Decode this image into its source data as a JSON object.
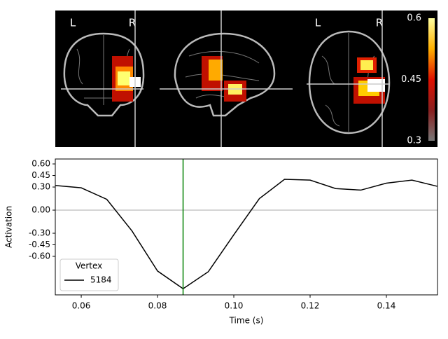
{
  "brain_view": {
    "labels": [
      "L",
      "R",
      "L",
      "R"
    ],
    "colorbar": {
      "lim": [
        0.3,
        0.6
      ],
      "ticks": [
        0.6,
        0.45,
        0.3
      ]
    }
  },
  "chart_data": {
    "type": "line",
    "x_label": "Time (s)",
    "y_label": "Activation",
    "x": [
      0.0533,
      0.06,
      0.0667,
      0.0733,
      0.08,
      0.0867,
      0.0933,
      0.1,
      0.1067,
      0.1133,
      0.12,
      0.1267,
      0.1333,
      0.14,
      0.1467,
      0.1533
    ],
    "series": [
      {
        "name": "5184",
        "color": "#000000",
        "values": [
          0.32,
          0.29,
          0.14,
          -0.27,
          -0.79,
          -1.02,
          -0.8,
          -0.32,
          0.15,
          0.4,
          0.39,
          0.28,
          0.26,
          0.35,
          0.39,
          0.31
        ]
      }
    ],
    "legend_title": "Vertex",
    "legend": "lower left",
    "time_marker": {
      "x": 0.0867,
      "color": "#008000"
    },
    "zero_line": {
      "y": 0,
      "color": "#aaaaaa"
    },
    "xlim": [
      0.0532,
      0.1534
    ],
    "ylim": [
      -1.1,
      0.664
    ],
    "xticks": [
      {
        "value": 0.06,
        "label": "0.06"
      },
      {
        "value": 0.08,
        "label": "0.08"
      },
      {
        "value": 0.1,
        "label": "0.10"
      },
      {
        "value": 0.12,
        "label": "0.12"
      },
      {
        "value": 0.14,
        "label": "0.14"
      }
    ],
    "yticks": [
      {
        "value": 0.6,
        "label": "0.60"
      },
      {
        "value": 0.45,
        "label": "0.45"
      },
      {
        "value": 0.3,
        "label": "0.30"
      },
      {
        "value": 0,
        "label": "0.00"
      },
      {
        "value": -0.3,
        "label": "-0.30"
      },
      {
        "value": -0.45,
        "label": "-0.45"
      },
      {
        "value": -0.6,
        "label": "-0.60"
      }
    ]
  }
}
